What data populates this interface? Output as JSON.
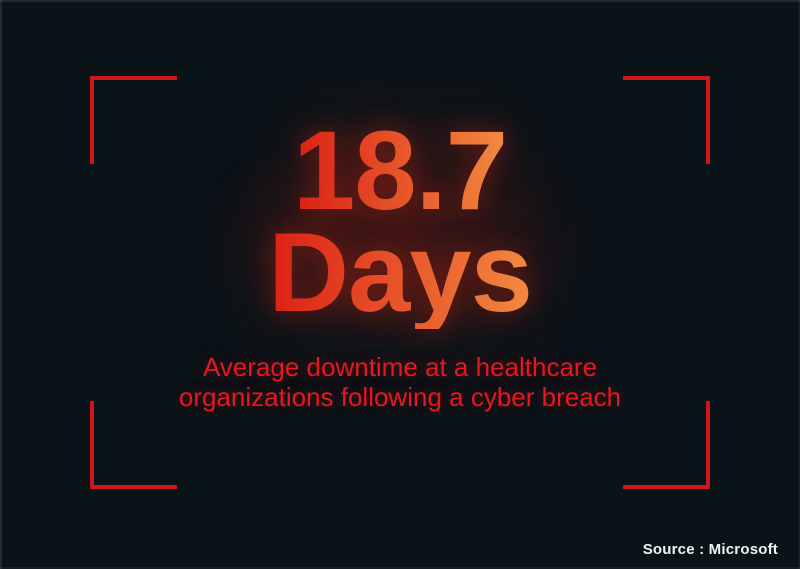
{
  "stat": {
    "value": "18.7",
    "unit": "Days",
    "description_line1": "Average downtime at a healthcare",
    "description_line2": "organizations following a cyber breach",
    "source": "Source : Microsoft"
  },
  "decorations": {
    "corner_brackets": [
      "top-left",
      "top-right",
      "bottom-left",
      "bottom-right"
    ],
    "bracket_style": "L-shaped red frame corners"
  },
  "colors": {
    "background": "#0a1318",
    "bracket_red": "#d0151f",
    "gradient_start": "#dc2015",
    "gradient_end": "#f28a40",
    "subtitle_red": "#e81620",
    "source_white": "#f0f3f4"
  }
}
